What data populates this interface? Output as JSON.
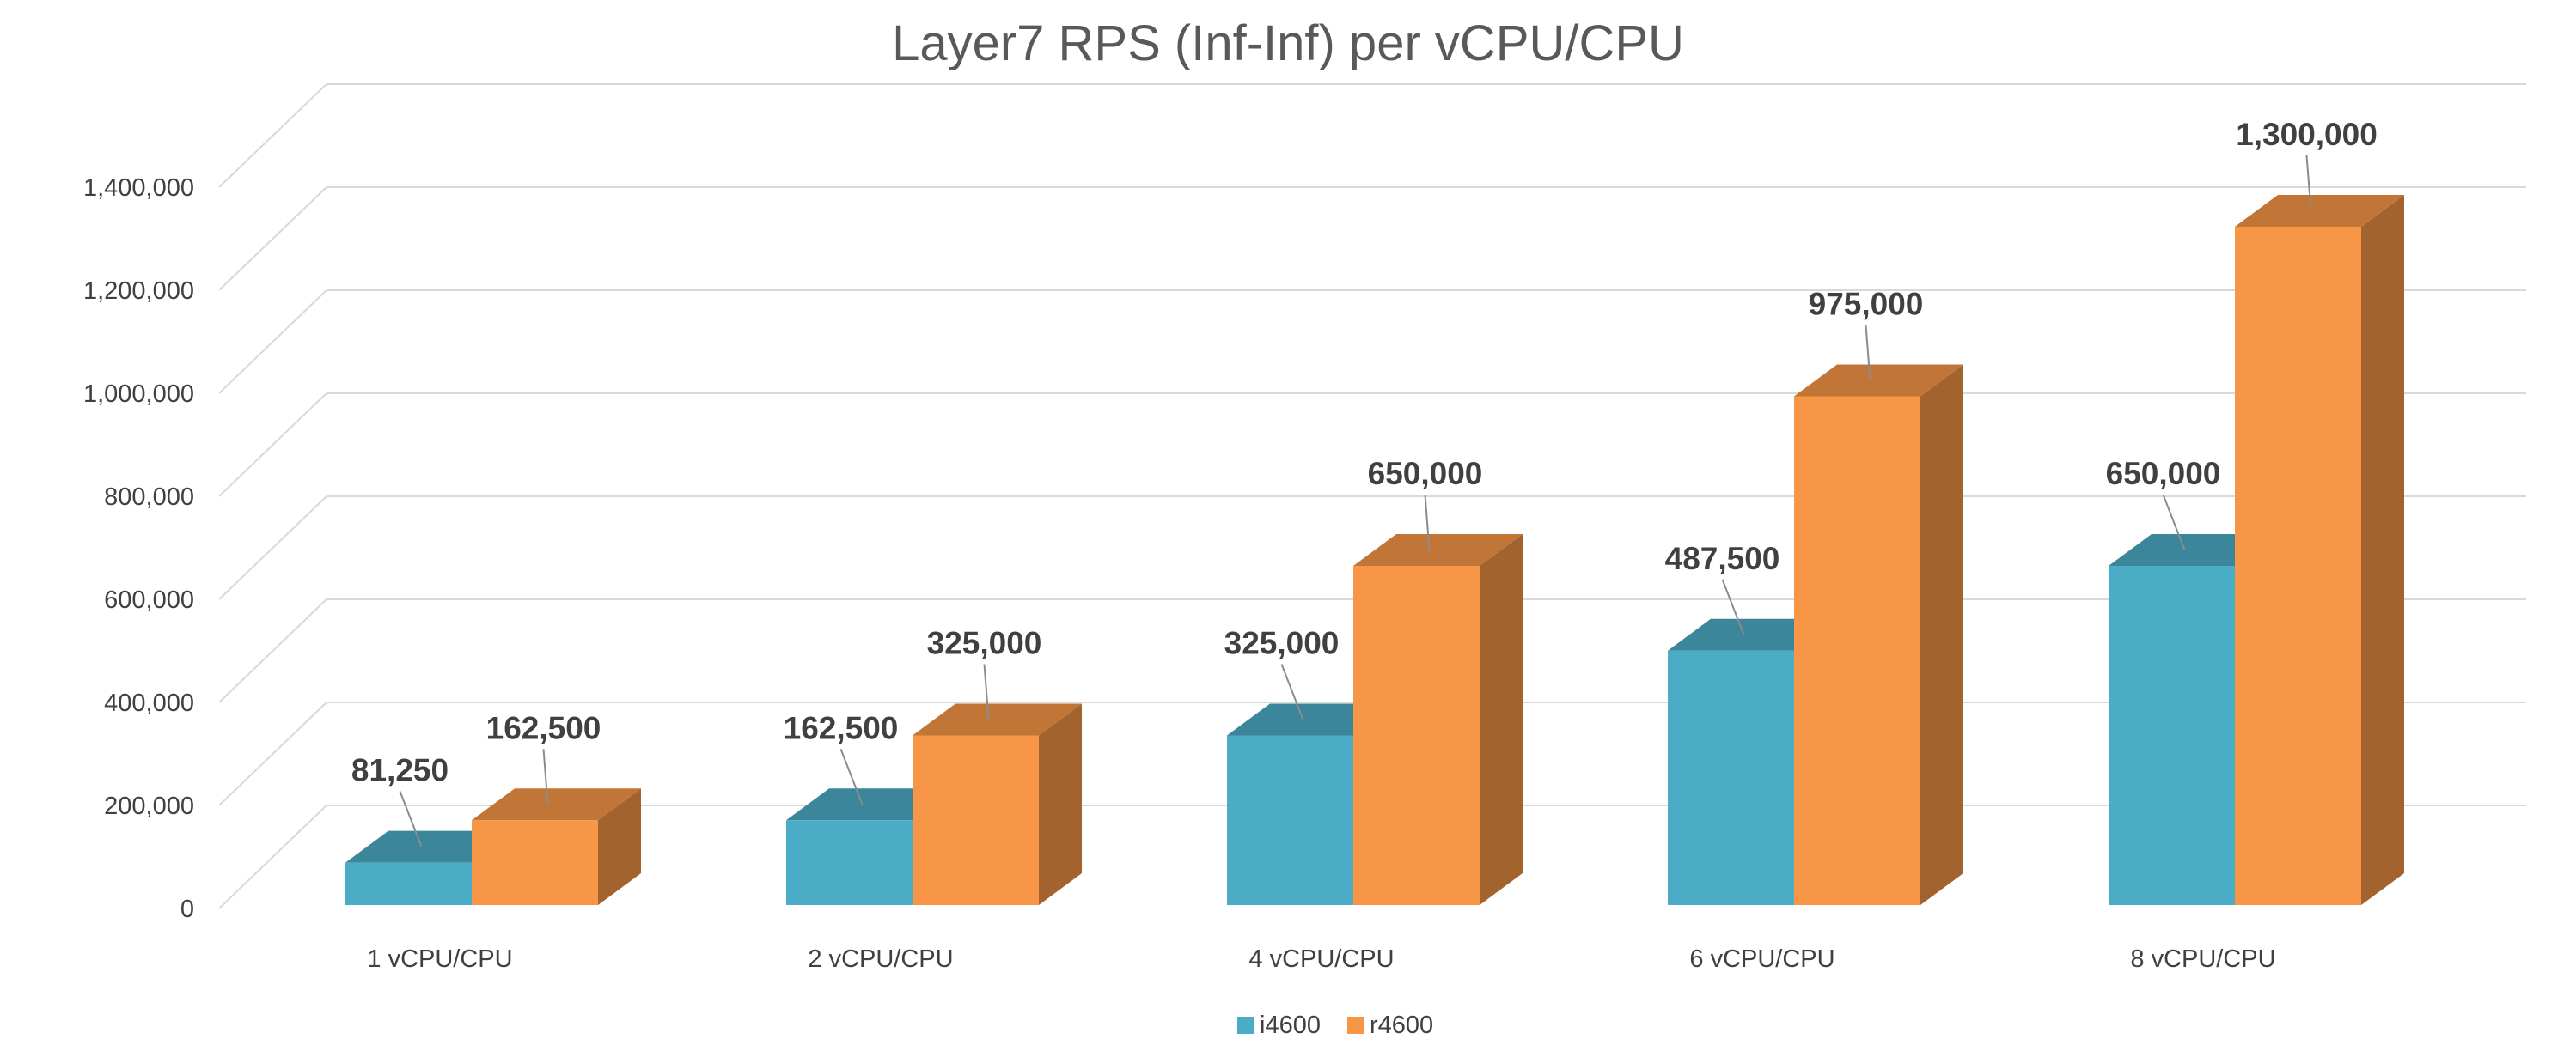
{
  "chart_data": {
    "type": "bar",
    "title": "Layer7 RPS (Inf-Inf) per vCPU/CPU",
    "xlabel": "",
    "ylabel": "",
    "categories": [
      "1 vCPU/CPU",
      "2 vCPU/CPU",
      "4 vCPU/CPU",
      "6 vCPU/CPU",
      "8 vCPU/CPU"
    ],
    "series": [
      {
        "name": "i4600",
        "values": [
          81250,
          162500,
          325000,
          487500,
          650000
        ],
        "labels": [
          "81,250",
          "162,500",
          "325,000",
          "487,500",
          "650,000"
        ],
        "color": "#4BACC6"
      },
      {
        "name": "r4600",
        "values": [
          162500,
          325000,
          650000,
          975000,
          1300000
        ],
        "labels": [
          "162,500",
          "325,000",
          "650,000",
          "975,000",
          "1,300,000"
        ],
        "color": "#F79646"
      }
    ],
    "ylim": [
      0,
      1400000
    ],
    "yticks": [
      0,
      200000,
      400000,
      600000,
      800000,
      1000000,
      1200000,
      1400000
    ],
    "ytick_labels": [
      "0",
      "200,000",
      "400,000",
      "600,000",
      "800,000",
      "1,000,000",
      "1,200,000",
      "1,400,000"
    ],
    "grid": true,
    "style": "3d-clustered-column",
    "legend_position": "bottom"
  }
}
